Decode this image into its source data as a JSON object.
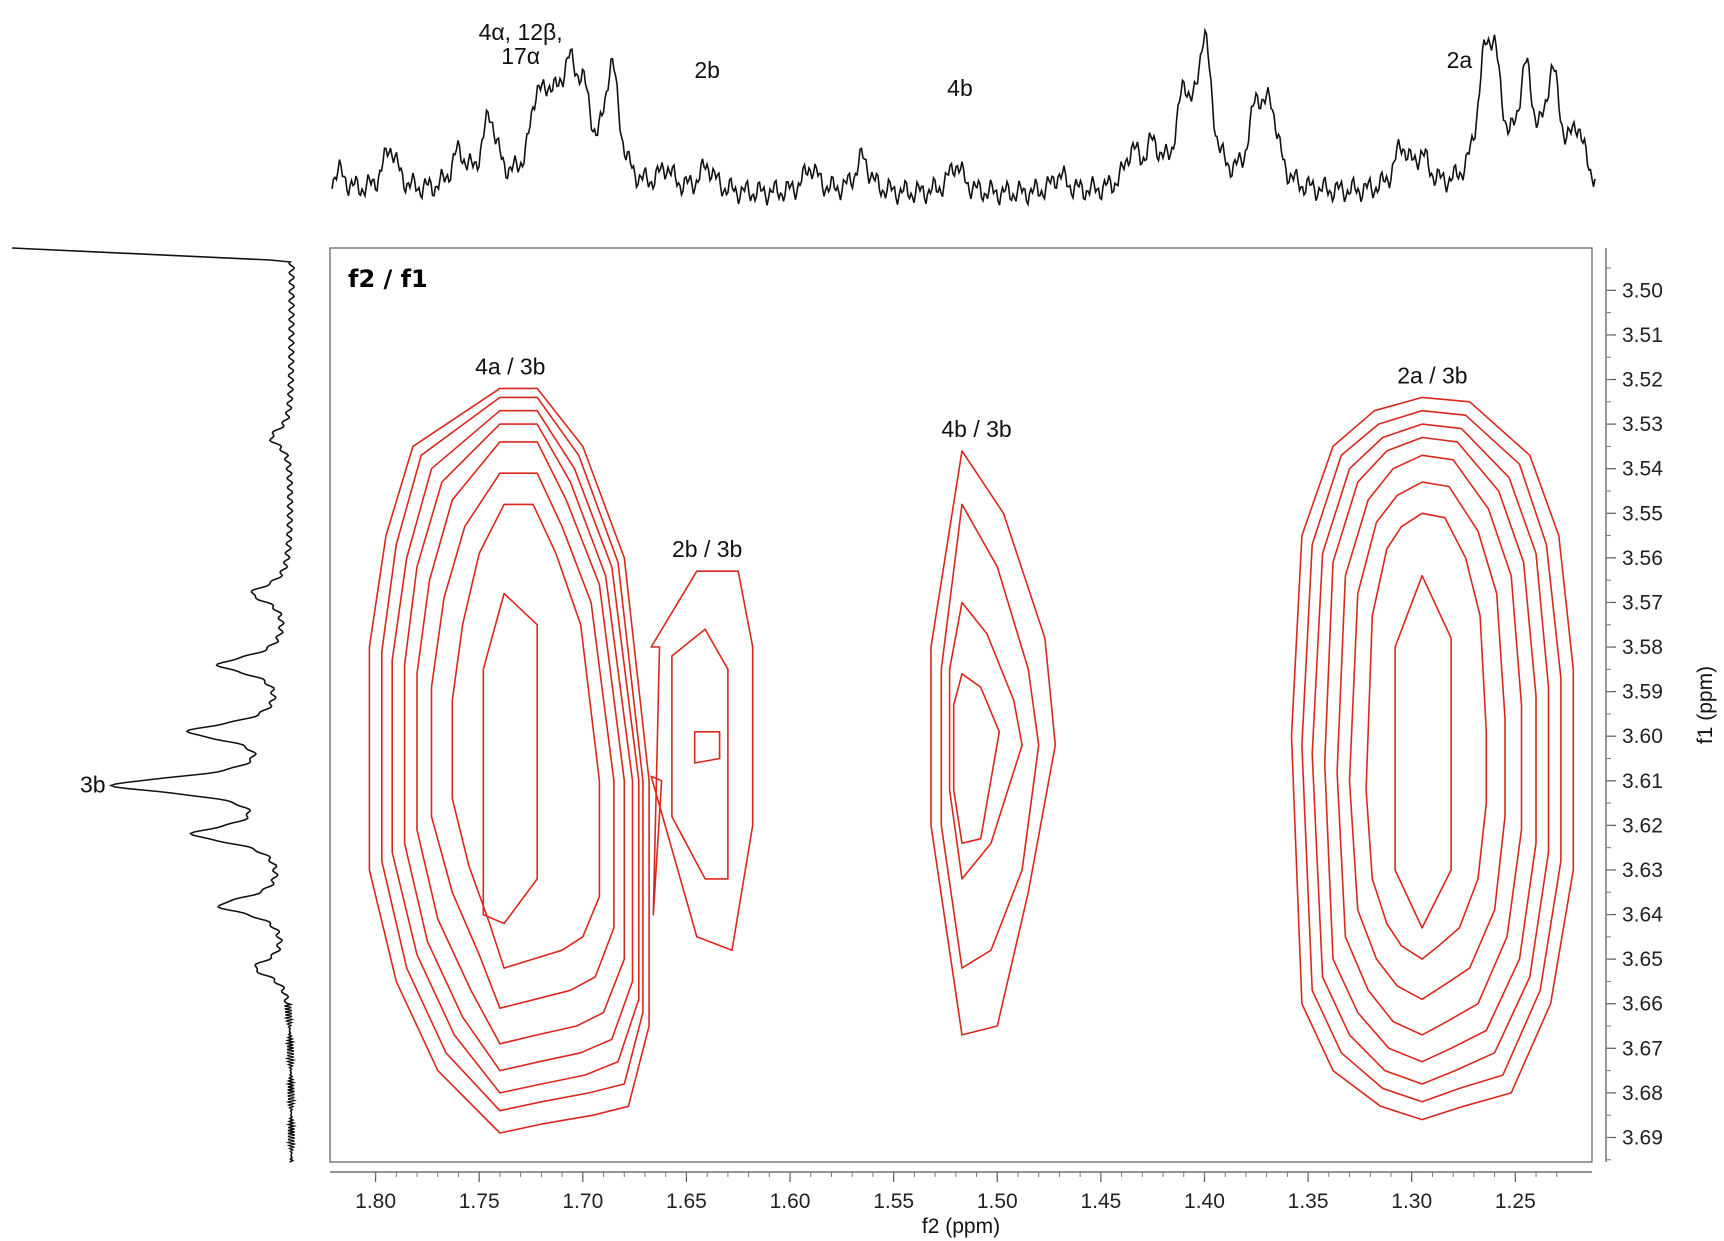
{
  "chart_data": {
    "type": "contour",
    "title": "f2 / f1",
    "xlabel": "f2 (ppm)",
    "ylabel": "f1 (ppm)",
    "xlim": [
      1.822,
      1.213
    ],
    "ylim": [
      3.4905,
      3.6955
    ],
    "x_ticks": [
      "1.80",
      "1.75",
      "1.70",
      "1.65",
      "1.60",
      "1.55",
      "1.50",
      "1.45",
      "1.40",
      "1.35",
      "1.30",
      "1.25"
    ],
    "y_ticks": [
      "3.50",
      "3.51",
      "3.52",
      "3.53",
      "3.54",
      "3.55",
      "3.56",
      "3.57",
      "3.58",
      "3.59",
      "3.60",
      "3.61",
      "3.62",
      "3.63",
      "3.64",
      "3.65",
      "3.66",
      "3.67",
      "3.68",
      "3.69"
    ],
    "cross_peaks": [
      {
        "label": "4a / 3b",
        "f2": 1.735,
        "f1": 3.605,
        "contours": [
          {
            "f2": [
              1.74,
              1.782,
              1.795,
              1.803,
              1.803,
              1.79,
              1.77,
              1.74,
              1.72,
              1.695,
              1.678,
              1.668,
              1.668,
              1.68,
              1.7,
              1.722
            ],
            "f1": [
              3.522,
              3.535,
              3.555,
              3.58,
              3.63,
              3.655,
              3.675,
              3.689,
              3.687,
              3.685,
              3.683,
              3.665,
              3.61,
              3.56,
              3.535,
              3.522
            ]
          },
          {
            "f2": [
              1.74,
              1.778,
              1.79,
              1.797,
              1.797,
              1.785,
              1.766,
              1.74,
              1.72,
              1.697,
              1.68,
              1.671,
              1.671,
              1.683,
              1.702,
              1.722
            ],
            "f1": [
              3.524,
              3.537,
              3.557,
              3.581,
              3.628,
              3.652,
              3.671,
              3.684,
              3.682,
              3.68,
              3.678,
              3.662,
              3.61,
              3.561,
              3.537,
              3.524
            ]
          },
          {
            "f2": [
              1.74,
              1.773,
              1.785,
              1.792,
              1.792,
              1.78,
              1.762,
              1.74,
              1.72,
              1.699,
              1.683,
              1.673,
              1.673,
              1.686,
              1.704,
              1.722
            ],
            "f1": [
              3.527,
              3.54,
              3.56,
              3.583,
              3.626,
              3.649,
              3.667,
              3.68,
              3.678,
              3.676,
              3.673,
              3.659,
              3.61,
              3.562,
              3.54,
              3.527
            ]
          },
          {
            "f2": [
              1.74,
              1.768,
              1.78,
              1.786,
              1.786,
              1.775,
              1.758,
              1.74,
              1.721,
              1.701,
              1.686,
              1.676,
              1.676,
              1.689,
              1.706,
              1.722
            ],
            "f1": [
              3.53,
              3.543,
              3.562,
              3.584,
              3.624,
              3.646,
              3.663,
              3.675,
              3.673,
              3.671,
              3.668,
              3.655,
              3.61,
              3.564,
              3.543,
              3.53
            ]
          },
          {
            "f2": [
              1.74,
              1.763,
              1.774,
              1.78,
              1.78,
              1.77,
              1.754,
              1.74,
              1.722,
              1.703,
              1.69,
              1.68,
              1.68,
              1.692,
              1.708,
              1.722
            ],
            "f1": [
              3.534,
              3.547,
              3.565,
              3.586,
              3.621,
              3.641,
              3.657,
              3.669,
              3.667,
              3.665,
              3.662,
              3.65,
              3.61,
              3.566,
              3.547,
              3.534
            ]
          },
          {
            "f2": [
              1.74,
              1.757,
              1.767,
              1.773,
              1.773,
              1.763,
              1.75,
              1.74,
              1.723,
              1.706,
              1.694,
              1.685,
              1.685,
              1.696,
              1.71,
              1.722
            ],
            "f1": [
              3.541,
              3.553,
              3.569,
              3.589,
              3.618,
              3.635,
              3.649,
              3.661,
              3.659,
              3.657,
              3.654,
              3.643,
              3.61,
              3.57,
              3.553,
              3.541
            ]
          },
          {
            "f2": [
              1.738,
              1.75,
              1.758,
              1.763,
              1.763,
              1.755,
              1.745,
              1.738,
              1.724,
              1.71,
              1.7,
              1.692,
              1.692,
              1.701,
              1.713,
              1.724
            ],
            "f1": [
              3.548,
              3.559,
              3.575,
              3.592,
              3.614,
              3.629,
              3.642,
              3.652,
              3.65,
              3.648,
              3.645,
              3.636,
              3.61,
              3.575,
              3.559,
              3.548
            ]
          },
          {
            "f2": [
              1.738,
              1.748,
              1.748,
              1.738,
              1.722,
              1.722
            ],
            "f1": [
              3.568,
              3.585,
              3.64,
              3.642,
              3.632,
              3.575
            ]
          }
        ]
      },
      {
        "label": "2b / 3b",
        "f2": 1.64,
        "f1": 3.6,
        "contours": [
          {
            "f2": [
              1.667,
              1.645,
              1.625,
              1.618,
              1.618,
              1.628,
              1.645,
              1.667,
              1.662,
              1.666,
              1.663
            ],
            "f1": [
              3.58,
              3.563,
              3.563,
              3.58,
              3.62,
              3.648,
              3.645,
              3.609,
              3.61,
              3.64,
              3.58
            ]
          },
          {
            "f2": [
              1.657,
              1.641,
              1.63,
              1.63,
              1.641,
              1.657
            ],
            "f1": [
              3.582,
              3.576,
              3.585,
              3.632,
              3.632,
              3.618
            ]
          },
          {
            "f2": [
              1.646,
              1.634,
              1.634,
              1.646
            ],
            "f1": [
              3.599,
              3.599,
              3.605,
              3.606
            ]
          }
        ]
      },
      {
        "label": "4b / 3b",
        "f2": 1.51,
        "f1": 3.6,
        "contours": [
          {
            "f2": [
              1.517,
              1.497,
              1.477,
              1.472,
              1.485,
              1.5,
              1.517,
              1.532,
              1.532
            ],
            "f1": [
              3.536,
              3.55,
              3.578,
              3.602,
              3.635,
              3.665,
              3.667,
              3.62,
              3.58
            ]
          },
          {
            "f2": [
              1.517,
              1.5,
              1.485,
              1.48,
              1.488,
              1.503,
              1.517,
              1.527,
              1.527
            ],
            "f1": [
              3.548,
              3.562,
              3.585,
              3.602,
              3.63,
              3.648,
              3.652,
              3.62,
              3.585
            ]
          },
          {
            "f2": [
              1.517,
              1.505,
              1.492,
              1.488,
              1.503,
              1.517,
              1.523,
              1.523
            ],
            "f1": [
              3.57,
              3.577,
              3.592,
              3.602,
              3.624,
              3.632,
              3.612,
              3.585
            ]
          },
          {
            "f2": [
              1.517,
              1.508,
              1.499,
              1.508,
              1.517,
              1.521,
              1.521
            ],
            "f1": [
              3.586,
              3.589,
              3.599,
              3.623,
              3.624,
              3.612,
              3.593
            ]
          }
        ]
      },
      {
        "label": "2a / 3b",
        "f2": 1.29,
        "f1": 3.6,
        "contours": [
          {
            "f2": [
              1.295,
              1.272,
              1.243,
              1.229,
              1.222,
              1.222,
              1.233,
              1.252,
              1.275,
              1.295,
              1.315,
              1.338,
              1.353,
              1.358,
              1.353,
              1.338,
              1.318
            ],
            "f1": [
              3.524,
              3.525,
              3.537,
              3.555,
              3.585,
              3.63,
              3.66,
              3.68,
              3.683,
              3.686,
              3.683,
              3.675,
              3.66,
              3.6,
              3.555,
              3.535,
              3.527
            ]
          },
          {
            "f2": [
              1.295,
              1.274,
              1.248,
              1.235,
              1.228,
              1.228,
              1.238,
              1.256,
              1.277,
              1.295,
              1.314,
              1.334,
              1.348,
              1.353,
              1.348,
              1.334,
              1.316
            ],
            "f1": [
              3.527,
              3.528,
              3.539,
              3.557,
              3.587,
              3.628,
              3.657,
              3.676,
              3.679,
              3.682,
              3.679,
              3.671,
              3.657,
              3.602,
              3.557,
              3.537,
              3.53
            ]
          },
          {
            "f2": [
              1.295,
              1.276,
              1.253,
              1.24,
              1.234,
              1.234,
              1.243,
              1.26,
              1.279,
              1.295,
              1.313,
              1.33,
              1.343,
              1.348,
              1.343,
              1.33,
              1.314
            ],
            "f1": [
              3.53,
              3.531,
              3.542,
              3.559,
              3.589,
              3.626,
              3.654,
              3.671,
              3.675,
              3.678,
              3.675,
              3.667,
              3.654,
              3.604,
              3.559,
              3.54,
              3.533
            ]
          },
          {
            "f2": [
              1.295,
              1.278,
              1.258,
              1.246,
              1.24,
              1.24,
              1.248,
              1.264,
              1.281,
              1.295,
              1.311,
              1.326,
              1.338,
              1.342,
              1.338,
              1.326,
              1.312
            ],
            "f1": [
              3.533,
              3.534,
              3.545,
              3.561,
              3.591,
              3.624,
              3.65,
              3.666,
              3.67,
              3.673,
              3.67,
              3.662,
              3.65,
              3.606,
              3.561,
              3.543,
              3.536
            ]
          },
          {
            "f2": [
              1.295,
              1.28,
              1.263,
              1.252,
              1.247,
              1.247,
              1.254,
              1.268,
              1.283,
              1.295,
              1.309,
              1.321,
              1.332,
              1.336,
              1.332,
              1.321,
              1.309
            ],
            "f1": [
              3.537,
              3.538,
              3.549,
              3.564,
              3.593,
              3.621,
              3.645,
              3.66,
              3.664,
              3.667,
              3.664,
              3.657,
              3.645,
              3.608,
              3.564,
              3.547,
              3.54
            ]
          },
          {
            "f2": [
              1.295,
              1.282,
              1.268,
              1.259,
              1.255,
              1.255,
              1.26,
              1.272,
              1.285,
              1.295,
              1.307,
              1.317,
              1.326,
              1.33,
              1.326,
              1.317,
              1.307
            ],
            "f1": [
              3.543,
              3.544,
              3.554,
              3.568,
              3.596,
              3.618,
              3.639,
              3.652,
              3.656,
              3.659,
              3.656,
              3.65,
              3.639,
              3.61,
              3.568,
              3.552,
              3.546
            ]
          },
          {
            "f2": [
              1.295,
              1.284,
              1.274,
              1.267,
              1.264,
              1.264,
              1.268,
              1.277,
              1.287,
              1.295,
              1.305,
              1.312,
              1.319,
              1.322,
              1.319,
              1.312,
              1.305
            ],
            "f1": [
              3.55,
              3.551,
              3.56,
              3.573,
              3.599,
              3.615,
              3.632,
              3.643,
              3.647,
              3.65,
              3.647,
              3.642,
              3.632,
              3.612,
              3.573,
              3.558,
              3.553
            ]
          },
          {
            "f2": [
              1.295,
              1.281,
              1.281,
              1.295,
              1.308,
              1.308
            ],
            "f1": [
              3.564,
              3.578,
              3.63,
              3.643,
              3.63,
              3.58
            ]
          }
        ]
      }
    ],
    "top_projection": {
      "annotations": [
        {
          "text": "4α, 12β,",
          "f2": 1.73
        },
        {
          "text": "17α",
          "f2": 1.73
        },
        {
          "text": "2b",
          "f2": 1.64
        },
        {
          "text": "4b",
          "f2": 1.518
        },
        {
          "text": "2a",
          "f2": 1.277
        }
      ],
      "peaks": [
        {
          "f2": 1.818,
          "h": 0.18
        },
        {
          "f2": 1.793,
          "h": 0.38
        },
        {
          "f2": 1.76,
          "h": 0.3
        },
        {
          "f2": 1.745,
          "h": 0.6
        },
        {
          "f2": 1.722,
          "h": 0.65
        },
        {
          "f2": 1.715,
          "h": 0.52
        },
        {
          "f2": 1.707,
          "h": 0.8
        },
        {
          "f2": 1.7,
          "h": 0.65
        },
        {
          "f2": 1.686,
          "h": 1.0
        },
        {
          "f2": 1.66,
          "h": 0.18
        },
        {
          "f2": 1.64,
          "h": 0.22
        },
        {
          "f2": 1.59,
          "h": 0.22
        },
        {
          "f2": 1.565,
          "h": 0.3
        },
        {
          "f2": 1.52,
          "h": 0.25
        },
        {
          "f2": 1.47,
          "h": 0.15
        },
        {
          "f2": 1.435,
          "h": 0.3
        },
        {
          "f2": 1.425,
          "h": 0.32
        },
        {
          "f2": 1.41,
          "h": 0.7
        },
        {
          "f2": 1.4,
          "h": 1.2
        },
        {
          "f2": 1.375,
          "h": 0.62
        },
        {
          "f2": 1.368,
          "h": 0.6
        },
        {
          "f2": 1.305,
          "h": 0.35
        },
        {
          "f2": 1.295,
          "h": 0.25
        },
        {
          "f2": 1.265,
          "h": 0.8
        },
        {
          "f2": 1.26,
          "h": 0.85
        },
        {
          "f2": 1.245,
          "h": 0.9
        },
        {
          "f2": 1.232,
          "h": 0.9
        },
        {
          "f2": 1.22,
          "h": 0.45
        }
      ]
    },
    "left_projection": {
      "annotations": [
        {
          "text": "3b",
          "f1": 3.611
        }
      ],
      "peaks": [
        {
          "f1": 3.533,
          "h": 0.12
        },
        {
          "f1": 3.568,
          "h": 0.22
        },
        {
          "f1": 3.584,
          "h": 0.4
        },
        {
          "f1": 3.599,
          "h": 0.55
        },
        {
          "f1": 3.611,
          "h": 1.0
        },
        {
          "f1": 3.622,
          "h": 0.52
        },
        {
          "f1": 3.638,
          "h": 0.4
        },
        {
          "f1": 3.652,
          "h": 0.2
        }
      ]
    }
  }
}
